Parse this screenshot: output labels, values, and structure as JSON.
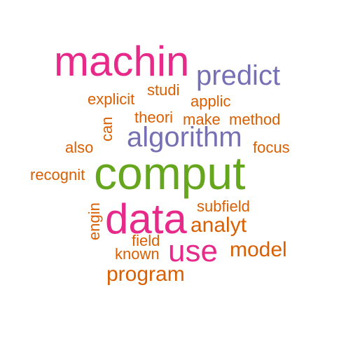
{
  "palette": {
    "orange": "#d95f02",
    "pink": "#e7298a",
    "purple": "#7570b3",
    "green": "#66a61e"
  },
  "words": {
    "machin": "machin",
    "predict": "predict",
    "studi": "studi",
    "explicit": "explicit",
    "applic": "applic",
    "theori": "theori",
    "make": "make",
    "method": "method",
    "can": "can",
    "algorithm": "algorithm",
    "also": "also",
    "focus": "focus",
    "recognit": "recognit",
    "comput": "comput",
    "subfield": "subfield",
    "data": "data",
    "engin": "engin",
    "analyt": "analyt",
    "field": "field",
    "use": "use",
    "model": "model",
    "known": "known",
    "program": "program"
  }
}
